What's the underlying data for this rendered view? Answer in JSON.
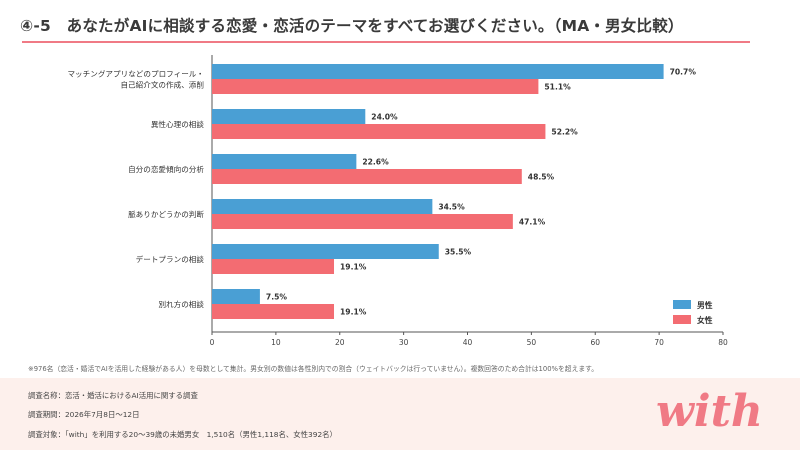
{
  "title": "④-5　あなたがAIに相談する恋愛・恋活のテーマをすべてお選びください。（MA・男女比較）",
  "chart_data": {
    "type": "bar",
    "orientation": "horizontal",
    "categories": [
      [
        "マッチングアプリなどのプロフィール・",
        "自己紹介文の作成、添削"
      ],
      [
        "異性心理の相談"
      ],
      [
        "自分の恋愛傾向の分析"
      ],
      [
        "脈ありかどうかの判断"
      ],
      [
        "デートプランの相談"
      ],
      [
        "別れ方の相談"
      ]
    ],
    "series": [
      {
        "name": "男性",
        "color": "#4a9fd4",
        "values": [
          70.7,
          24.0,
          22.6,
          34.5,
          35.5,
          7.5
        ]
      },
      {
        "name": "女性",
        "color": "#f36c72",
        "values": [
          51.1,
          52.2,
          48.5,
          47.1,
          19.1,
          19.1
        ]
      }
    ],
    "xlim": [
      0,
      80
    ],
    "xticks": [
      0,
      10,
      20,
      30,
      40,
      50,
      60,
      70,
      80
    ],
    "value_suffix": "%",
    "legend_position": "bottom-right",
    "grid": false
  },
  "note": "※976名（恋活・婚活でAIを活用した経験がある人）を母数として集計。男女別の数値は各性別内での割合（ウェイトバックは行っていません）。複数回答のため合計は100%を超えます。",
  "footer": {
    "survey_name": "調査名称：恋活・婚活におけるAI活用に関する調査",
    "survey_period": "調査期間：2026年7月8日〜12日",
    "survey_target": "調査対象：「with」を利用する20〜39歳の未婚男女　1,510名（男性1,118名、女性392名）"
  },
  "logo": {
    "text": "with",
    "color": "#f07a85"
  }
}
